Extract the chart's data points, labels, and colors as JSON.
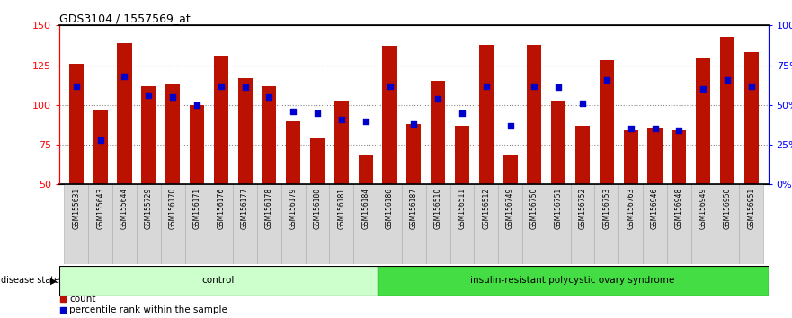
{
  "title": "GDS3104 / 1557569_at",
  "samples": [
    "GSM155631",
    "GSM155643",
    "GSM155644",
    "GSM155729",
    "GSM156170",
    "GSM156171",
    "GSM156176",
    "GSM156177",
    "GSM156178",
    "GSM156179",
    "GSM156180",
    "GSM156181",
    "GSM156184",
    "GSM156186",
    "GSM156187",
    "GSM156510",
    "GSM156511",
    "GSM156512",
    "GSM156749",
    "GSM156750",
    "GSM156751",
    "GSM156752",
    "GSM156753",
    "GSM156763",
    "GSM156946",
    "GSM156948",
    "GSM156949",
    "GSM156950",
    "GSM156951"
  ],
  "counts": [
    126,
    97,
    139,
    112,
    113,
    100,
    131,
    117,
    112,
    90,
    79,
    103,
    69,
    137,
    88,
    115,
    87,
    138,
    69,
    138,
    103,
    87,
    128,
    84,
    85,
    84,
    129,
    143,
    133
  ],
  "percentile_ranks": [
    62,
    28,
    68,
    56,
    55,
    50,
    62,
    61,
    55,
    46,
    45,
    41,
    40,
    62,
    38,
    54,
    45,
    62,
    37,
    62,
    61,
    51,
    66,
    35,
    35,
    34,
    60,
    66,
    62
  ],
  "group_labels": [
    "control",
    "insulin-resistant polycystic ovary syndrome"
  ],
  "group_sizes": [
    13,
    16
  ],
  "ylim_left": [
    50,
    150
  ],
  "ylim_right": [
    0,
    100
  ],
  "y_ticks_left": [
    50,
    75,
    100,
    125,
    150
  ],
  "y_ticks_right": [
    0,
    25,
    50,
    75,
    100
  ],
  "bar_color": "#bb1100",
  "dot_color": "#0000cc",
  "control_color": "#ccffcc",
  "disease_color": "#44dd44"
}
